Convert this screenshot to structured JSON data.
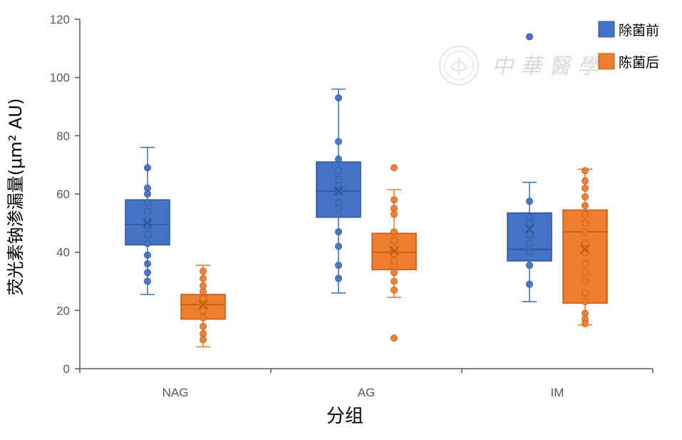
{
  "chart_data": {
    "type": "box",
    "xlabel": "分组",
    "ylabel": "荧光素钠渗漏量(μm² AU)",
    "ylim": [
      0,
      120
    ],
    "yticks": [
      0,
      20,
      40,
      60,
      80,
      100,
      120
    ],
    "categories": [
      "NAG",
      "AG",
      "IM"
    ],
    "legend_position": "top-right",
    "grid": false,
    "series": [
      {
        "name": "除菌前",
        "color": "#4472C4",
        "boxes": [
          {
            "min": 25.5,
            "q1": 42.5,
            "median": 49.5,
            "q3": 58,
            "max": 76,
            "mean": 50,
            "points": [
              69,
              62,
              60,
              57,
              54,
              51,
              49,
              46,
              43,
              39,
              36,
              33,
              30
            ]
          },
          {
            "min": 26,
            "q1": 52,
            "median": 61,
            "q3": 71,
            "max": 96,
            "mean": 61,
            "points": [
              93,
              78,
              72,
              68,
              65,
              63,
              61,
              57,
              55,
              47,
              42,
              35.5,
              31
            ]
          },
          {
            "min": 23,
            "q1": 37,
            "median": 41,
            "q3": 53.5,
            "max": 64,
            "mean": 48,
            "points": [
              57.5,
              52,
              50,
              46,
              43,
              40,
              35.5,
              29
            ],
            "outliers": [
              114
            ]
          }
        ]
      },
      {
        "name": "陈菌后",
        "color": "#ED7D31",
        "boxes": [
          {
            "min": 7.5,
            "q1": 17,
            "median": 22,
            "q3": 25.5,
            "max": 35.5,
            "mean": 22,
            "points": [
              33.5,
              31,
              28.5,
              26.5,
              24,
              22,
              20,
              17.5,
              14.5,
              12,
              10
            ]
          },
          {
            "min": 24.5,
            "q1": 34,
            "median": 40,
            "q3": 46.5,
            "max": 61.5,
            "mean": 40.5,
            "points": [
              69,
              58,
              55,
              53,
              47,
              44,
              41,
              39.5,
              37,
              35,
              33,
              30,
              27
            ],
            "outliers": [
              10.5
            ]
          },
          {
            "min": 15,
            "q1": 22.5,
            "median": 47,
            "q3": 54.5,
            "max": 68.5,
            "mean": 41,
            "points": [
              68,
              64.5,
              62,
              59,
              56,
              53,
              50,
              47,
              43,
              40,
              36,
              33,
              30,
              26,
              23,
              19,
              17,
              15.5
            ]
          }
        ]
      }
    ]
  },
  "watermark": {
    "text": "中華醫學"
  }
}
